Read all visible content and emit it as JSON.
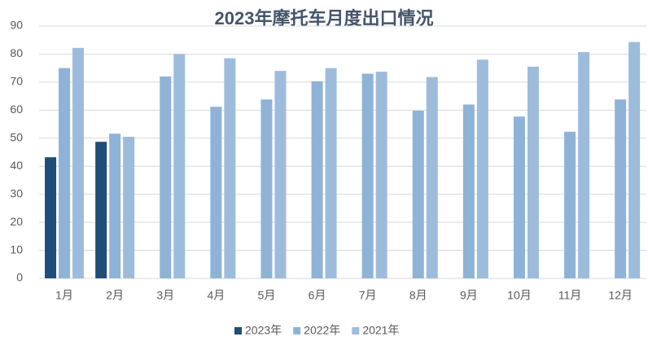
{
  "chart_data": {
    "type": "bar",
    "title": "2023年摩托车月度出口情况",
    "categories": [
      "1月",
      "2月",
      "3月",
      "4月",
      "5月",
      "6月",
      "7月",
      "8月",
      "9月",
      "10月",
      "11月",
      "12月"
    ],
    "series": [
      {
        "name": "2023年",
        "color": "#1f4e79",
        "values": [
          43.2,
          48.7,
          null,
          null,
          null,
          null,
          null,
          null,
          null,
          null,
          null,
          null
        ]
      },
      {
        "name": "2022年",
        "color": "#8fb3d6",
        "values": [
          75,
          51.6,
          72,
          61.2,
          63.8,
          70.3,
          73,
          59.8,
          62,
          57.7,
          52.3,
          63.8
        ]
      },
      {
        "name": "2021年",
        "color": "#9dbcdc",
        "values": [
          82.2,
          50.5,
          80,
          78.5,
          74,
          75,
          73.7,
          71.8,
          78,
          75.5,
          80.7,
          84.3
        ]
      }
    ],
    "ylim": [
      0,
      90
    ],
    "yticks": [
      0,
      10,
      20,
      30,
      40,
      50,
      60,
      70,
      80,
      90
    ],
    "grid": true,
    "legend": "bottom"
  }
}
